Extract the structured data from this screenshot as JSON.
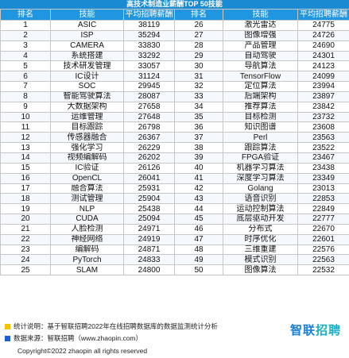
{
  "title": "高技术制造业薪酬TOP 50技能",
  "headers": [
    "排名",
    "技能",
    "平均招聘薪酬",
    "排名",
    "技能",
    "平均招聘薪酬"
  ],
  "rows": [
    [
      [
        "1",
        "ASIC",
        "38119"
      ],
      [
        "26",
        "激光雷达",
        "24775"
      ]
    ],
    [
      [
        "2",
        "ISP",
        "35294"
      ],
      [
        "27",
        "图像增强",
        "24726"
      ]
    ],
    [
      [
        "3",
        "CAMERA",
        "33830"
      ],
      [
        "28",
        "产品管理",
        "24690"
      ]
    ],
    [
      [
        "4",
        "系统搭建",
        "33292"
      ],
      [
        "29",
        "自动驾驶",
        "24301"
      ]
    ],
    [
      [
        "5",
        "技术研发管理",
        "33057"
      ],
      [
        "30",
        "导航算法",
        "24123"
      ]
    ],
    [
      [
        "6",
        "IC设计",
        "31124"
      ],
      [
        "31",
        "TensorFlow",
        "24099"
      ]
    ],
    [
      [
        "7",
        "SOC",
        "29945"
      ],
      [
        "32",
        "定位算法",
        "23994"
      ]
    ],
    [
      [
        "8",
        "智能驾驶算法",
        "28087"
      ],
      [
        "33",
        "后端架构",
        "23897"
      ]
    ],
    [
      [
        "9",
        "大数据架构",
        "27658"
      ],
      [
        "34",
        "推荐算法",
        "23842"
      ]
    ],
    [
      [
        "10",
        "运维管理",
        "27648"
      ],
      [
        "35",
        "目标检测",
        "23732"
      ]
    ],
    [
      [
        "11",
        "目标跟踪",
        "26798"
      ],
      [
        "36",
        "知识图谱",
        "23608"
      ]
    ],
    [
      [
        "12",
        "传感器融合",
        "26367"
      ],
      [
        "37",
        "Perl",
        "23563"
      ]
    ],
    [
      [
        "13",
        "强化学习",
        "26229"
      ],
      [
        "38",
        "跟踪算法",
        "23522"
      ]
    ],
    [
      [
        "14",
        "视频编解码",
        "26202"
      ],
      [
        "39",
        "FPGA验证",
        "23467"
      ]
    ],
    [
      [
        "15",
        "IC验证",
        "26126"
      ],
      [
        "40",
        "机器学习算法",
        "23438"
      ]
    ],
    [
      [
        "16",
        "OpenCL",
        "26041"
      ],
      [
        "41",
        "深度学习算法",
        "23349"
      ]
    ],
    [
      [
        "17",
        "融合算法",
        "25931"
      ],
      [
        "42",
        "Golang",
        "23013"
      ]
    ],
    [
      [
        "18",
        "测试管理",
        "25904"
      ],
      [
        "43",
        "语音识别",
        "22853"
      ]
    ],
    [
      [
        "19",
        "NLP",
        "25438"
      ],
      [
        "44",
        "运动控制算法",
        "22849"
      ]
    ],
    [
      [
        "20",
        "CUDA",
        "25094"
      ],
      [
        "45",
        "底层驱动开发",
        "22777"
      ]
    ],
    [
      [
        "21",
        "人脸检测",
        "24971"
      ],
      [
        "46",
        "分布式",
        "22670"
      ]
    ],
    [
      [
        "22",
        "神经网络",
        "24919"
      ],
      [
        "47",
        "时序优化",
        "22601"
      ]
    ],
    [
      [
        "23",
        "编解码",
        "24871"
      ],
      [
        "48",
        "三维重建",
        "22576"
      ]
    ],
    [
      [
        "24",
        "PyTorch",
        "24833"
      ],
      [
        "49",
        "模式识别",
        "22563"
      ]
    ],
    [
      [
        "25",
        "SLAM",
        "24800"
      ],
      [
        "50",
        "图像算法",
        "22532"
      ]
    ]
  ],
  "footer": {
    "stat_note": "统计说明：基于智联招聘2022年在线招聘数据库的数据监测统计分析",
    "source_note": "数据来源：智联招聘（www.zhaopin.com）",
    "copyright": "Copyright©2022 zhaopin all rights reserved",
    "logo_main": "智联",
    "logo_accent": "招聘",
    "colors": {
      "stat": "#f2c500",
      "source": "#1a5fd4",
      "header": "#2196e0"
    }
  }
}
